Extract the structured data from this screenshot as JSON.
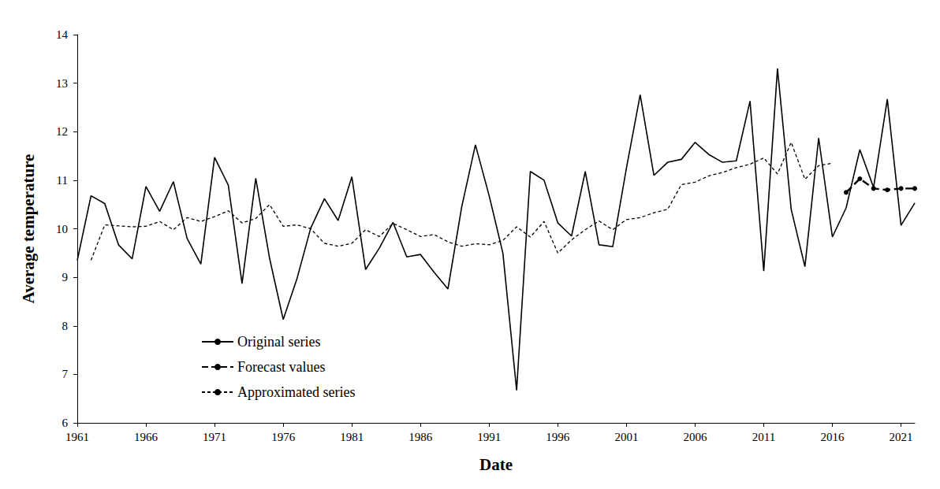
{
  "chart_data": {
    "type": "line",
    "x_label": "Date",
    "y_label": "Average temperature",
    "x": [
      1961,
      1962,
      1963,
      1964,
      1965,
      1966,
      1967,
      1968,
      1969,
      1970,
      1971,
      1972,
      1973,
      1974,
      1975,
      1976,
      1977,
      1978,
      1979,
      1980,
      1981,
      1982,
      1983,
      1984,
      1985,
      1986,
      1987,
      1988,
      1989,
      1990,
      1991,
      1992,
      1993,
      1994,
      1995,
      1996,
      1997,
      1998,
      1999,
      2000,
      2001,
      2002,
      2003,
      2004,
      2005,
      2006,
      2007,
      2008,
      2009,
      2010,
      2011,
      2012,
      2013,
      2014,
      2015,
      2016,
      2017,
      2018,
      2019,
      2020,
      2021,
      2022
    ],
    "series": [
      {
        "name": "Original series",
        "color": "#000000",
        "line_style": "solid",
        "marker": "none",
        "values": [
          9.35,
          10.68,
          10.52,
          9.67,
          9.38,
          10.87,
          10.36,
          10.97,
          9.8,
          9.27,
          11.47,
          10.9,
          8.87,
          11.04,
          9.4,
          8.13,
          8.97,
          10.01,
          10.62,
          10.17,
          11.07,
          9.16,
          9.6,
          10.13,
          9.42,
          9.47,
          9.1,
          8.76,
          10.45,
          11.73,
          10.68,
          9.5,
          6.67,
          11.18,
          11.0,
          10.12,
          9.85,
          11.18,
          9.67,
          9.63,
          11.25,
          12.76,
          11.1,
          11.37,
          11.43,
          11.78,
          11.53,
          11.37,
          11.4,
          12.63,
          9.13,
          13.3,
          10.4,
          9.22,
          11.87,
          9.83,
          10.43,
          11.63,
          10.85,
          12.67,
          10.07,
          10.53
        ]
      },
      {
        "name": "Forecast values",
        "color": "#000000",
        "line_style": "dashed",
        "marker": "circle",
        "values": [
          null,
          null,
          null,
          null,
          null,
          null,
          null,
          null,
          null,
          null,
          null,
          null,
          null,
          null,
          null,
          null,
          null,
          null,
          null,
          null,
          null,
          null,
          null,
          null,
          null,
          null,
          null,
          null,
          null,
          null,
          null,
          null,
          null,
          null,
          null,
          null,
          null,
          null,
          null,
          null,
          null,
          null,
          null,
          null,
          null,
          null,
          null,
          null,
          null,
          null,
          null,
          null,
          null,
          null,
          null,
          null,
          10.75,
          11.03,
          10.83,
          10.8,
          10.83,
          10.83
        ]
      },
      {
        "name": "Approximated series",
        "color": "#000000",
        "line_style": "dotted",
        "marker": "none",
        "values": [
          null,
          9.35,
          10.08,
          10.06,
          10.04,
          10.05,
          10.15,
          9.98,
          10.23,
          10.15,
          10.25,
          10.37,
          10.12,
          10.21,
          10.5,
          10.05,
          10.08,
          10.0,
          9.7,
          9.64,
          9.7,
          9.98,
          9.84,
          10.11,
          9.98,
          9.84,
          9.88,
          9.73,
          9.64,
          9.69,
          9.67,
          9.76,
          10.04,
          9.83,
          10.15,
          9.5,
          9.77,
          9.98,
          10.16,
          9.98,
          10.19,
          10.23,
          10.33,
          10.4,
          10.91,
          10.96,
          11.09,
          11.16,
          11.26,
          11.33,
          11.46,
          11.13,
          11.78,
          11.02,
          11.3,
          11.35,
          null,
          null,
          null,
          null,
          null,
          null
        ]
      }
    ],
    "xlim": [
      1961,
      2022
    ],
    "xticks": [
      1961,
      1966,
      1971,
      1976,
      1981,
      1986,
      1991,
      1996,
      2001,
      2006,
      2011,
      2016,
      2021
    ],
    "ylim": [
      6,
      14
    ],
    "yticks": [
      6,
      7,
      8,
      9,
      10,
      11,
      12,
      13,
      14
    ],
    "grid": false,
    "legend": "lower left"
  }
}
